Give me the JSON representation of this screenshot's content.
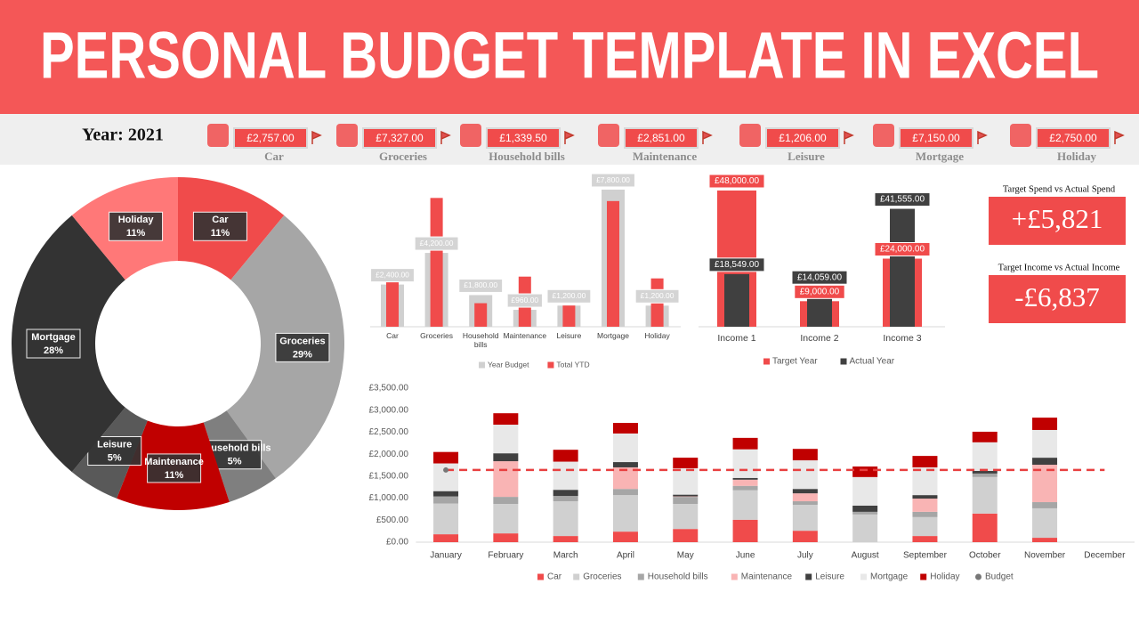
{
  "header": {
    "title": "PERSONAL BUDGET TEMPLATE IN EXCEL"
  },
  "year": "Year: 2021",
  "expense_strip": [
    {
      "amount": "£2,757.00",
      "name": "Car"
    },
    {
      "amount": "£7,327.00",
      "name": "Groceries"
    },
    {
      "amount": "£1,339.50",
      "name": "Household bills"
    },
    {
      "amount": "£2,851.00",
      "name": "Maintenance"
    },
    {
      "amount": "£1,206.00",
      "name": "Leisure"
    },
    {
      "amount": "£7,150.00",
      "name": "Mortgage"
    },
    {
      "amount": "£2,750.00",
      "name": "Holiday"
    }
  ],
  "chart_data": [
    {
      "type": "pie",
      "donut": true,
      "categories": [
        "Car",
        "Groceries",
        "Household bills",
        "Maintenance",
        "Leisure",
        "Mortgage",
        "Holiday"
      ],
      "values": [
        11,
        29,
        5,
        11,
        5,
        28,
        11
      ],
      "value_labels": [
        "11%",
        "29%",
        "5%",
        "11%",
        "5%",
        "28%",
        "11%"
      ],
      "colors": [
        "#f04b4b",
        "#a6a6a6",
        "#7f7f7f",
        "#c00000",
        "#595959",
        "#333333",
        "#ff7878"
      ]
    },
    {
      "type": "bar",
      "categories": [
        "Car",
        "Groceries",
        "Household bills",
        "Maintenance",
        "Leisure",
        "Mortgage",
        "Holiday"
      ],
      "series": [
        {
          "name": "Year Budget",
          "color": "#d0d0d0",
          "values": [
            2400,
            4200,
            1800,
            960,
            1200,
            7800,
            1200
          ],
          "value_labels": [
            "£2,400.00",
            "£4,200.00",
            "£1,800.00",
            "£960.00",
            "£1,200.00",
            "£7,800.00",
            "£1,200.00"
          ]
        },
        {
          "name": "Total YTD",
          "color": "#f04b4b",
          "values": [
            2757,
            7327,
            1339.5,
            2851,
            1206,
            7150,
            2750
          ]
        }
      ]
    },
    {
      "type": "bar",
      "categories": [
        "Income 1",
        "Income 2",
        "Income 3"
      ],
      "series": [
        {
          "name": "Target Year",
          "color": "#f04b4b",
          "values": [
            48000,
            9000,
            24000
          ],
          "value_labels": [
            "£48,000.00",
            "£9,000.00",
            "£24,000.00"
          ]
        },
        {
          "name": "Actual Year",
          "color": "#404040",
          "values": [
            18549,
            14059,
            41555
          ],
          "value_labels": [
            "£18,549.00",
            "£14,059.00",
            "£41,555.00"
          ]
        }
      ]
    },
    {
      "type": "stacked_bar",
      "categories": [
        "January",
        "February",
        "March",
        "April",
        "May",
        "June",
        "July",
        "August",
        "September",
        "October",
        "November",
        "December"
      ],
      "ylim": [
        0,
        3500
      ],
      "yticks": [
        {
          "value": 0,
          "label": "£0.00"
        },
        {
          "value": 500,
          "label": "£500.00"
        },
        {
          "value": 1000,
          "label": "£1,000.00"
        },
        {
          "value": 1500,
          "label": "£1,500.00"
        },
        {
          "value": 2000,
          "label": "£2,000.00"
        },
        {
          "value": 2500,
          "label": "£2,500.00"
        },
        {
          "value": 3000,
          "label": "£3,000.00"
        },
        {
          "value": 3500,
          "label": "£3,500.00"
        }
      ],
      "series": [
        {
          "name": "Car",
          "color": "#f04b4b",
          "values": [
            180,
            200,
            140,
            240,
            300,
            510,
            260,
            0,
            140,
            650,
            100,
            0
          ]
        },
        {
          "name": "Groceries",
          "color": "#d0d0d0",
          "values": [
            700,
            670,
            790,
            830,
            570,
            670,
            590,
            630,
            430,
            830,
            670,
            0
          ]
        },
        {
          "name": "Household bills",
          "color": "#a6a6a6",
          "values": [
            160,
            160,
            120,
            140,
            160,
            100,
            80,
            60,
            120,
            80,
            140,
            0
          ]
        },
        {
          "name": "Maintenance",
          "color": "#f9b4b4",
          "values": [
            0,
            810,
            0,
            490,
            10,
            140,
            180,
            0,
            300,
            0,
            850,
            0
          ]
        },
        {
          "name": "Leisure",
          "color": "#404040",
          "values": [
            120,
            180,
            140,
            120,
            40,
            40,
            100,
            140,
            80,
            60,
            160,
            0
          ]
        },
        {
          "name": "Mortgage",
          "color": "#e8e8e8",
          "values": [
            630,
            650,
            640,
            650,
            600,
            650,
            650,
            650,
            630,
            650,
            630,
            0
          ]
        },
        {
          "name": "Holiday",
          "color": "#c00000",
          "values": [
            260,
            260,
            270,
            240,
            240,
            260,
            260,
            240,
            260,
            240,
            280,
            0
          ]
        },
        {
          "name": "Budget",
          "color": "#e84040",
          "type": "line",
          "values": [
            1640,
            1640,
            1640,
            1640,
            1640,
            1640,
            1640,
            1640,
            1640,
            1640,
            1640,
            1640
          ]
        }
      ]
    }
  ],
  "summary": [
    {
      "label": "Target Spend vs Actual Spend",
      "value": "+£5,821"
    },
    {
      "label": "Target Income vs Actual Income",
      "value": "-£6,837"
    }
  ]
}
